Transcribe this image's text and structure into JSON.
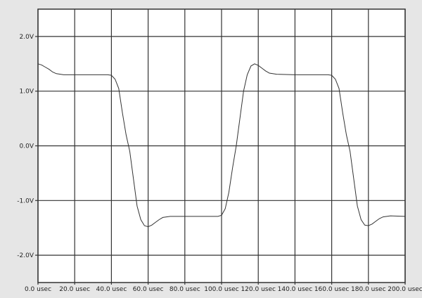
{
  "chart_data": {
    "type": "line",
    "title": "",
    "xlabel": "",
    "ylabel": "",
    "xlim": [
      0,
      200
    ],
    "ylim": [
      -2.5,
      2.5
    ],
    "grid": true,
    "x_ticks": [
      0,
      20,
      40,
      60,
      80,
      100,
      120,
      140,
      160,
      180,
      200
    ],
    "x_tick_labels": [
      "0.0 usec",
      "20.0 usec",
      "40.0 usec",
      "60.0 usec",
      "80.0 usec",
      "100.0 usec",
      "120.0 usec",
      "140.0 usec",
      "160.0 usec",
      "180.0 usec",
      "200.0 usec"
    ],
    "y_ticks": [
      2,
      1,
      0,
      -1,
      -2
    ],
    "y_tick_labels": [
      "2.0V",
      "1.0V",
      "0.0V",
      "-1.0V",
      "-2.0V"
    ],
    "colors": {
      "line": "#333333",
      "grid": "#333333",
      "plot_bg": "#ffffff",
      "page_bg": "#e6e6e6"
    },
    "series": [
      {
        "x": [
          0,
          2,
          4,
          6,
          8,
          10,
          14,
          20,
          30,
          38,
          40,
          42,
          44,
          46,
          48,
          50,
          52,
          54,
          56,
          58,
          60,
          62,
          64,
          66,
          68,
          72,
          80,
          90,
          98,
          100,
          102,
          104,
          106,
          108,
          110,
          112,
          114,
          116,
          118,
          120,
          122,
          124,
          126,
          130,
          140,
          150,
          158,
          160,
          162,
          164,
          166,
          168,
          170,
          172,
          174,
          176,
          178,
          180,
          182,
          184,
          186,
          188,
          192,
          200
        ],
        "y": [
          1.5,
          1.48,
          1.44,
          1.4,
          1.35,
          1.32,
          1.3,
          1.3,
          1.3,
          1.3,
          1.29,
          1.22,
          1.05,
          0.6,
          0.2,
          -0.1,
          -0.6,
          -1.1,
          -1.35,
          -1.46,
          -1.48,
          -1.45,
          -1.4,
          -1.35,
          -1.31,
          -1.29,
          -1.29,
          -1.29,
          -1.29,
          -1.27,
          -1.15,
          -0.85,
          -0.4,
          0.0,
          0.5,
          1.0,
          1.3,
          1.46,
          1.5,
          1.47,
          1.42,
          1.37,
          1.33,
          1.31,
          1.3,
          1.3,
          1.3,
          1.29,
          1.22,
          1.05,
          0.6,
          0.2,
          -0.1,
          -0.6,
          -1.1,
          -1.35,
          -1.45,
          -1.46,
          -1.43,
          -1.38,
          -1.33,
          -1.3,
          -1.28,
          -1.29
        ]
      }
    ]
  }
}
